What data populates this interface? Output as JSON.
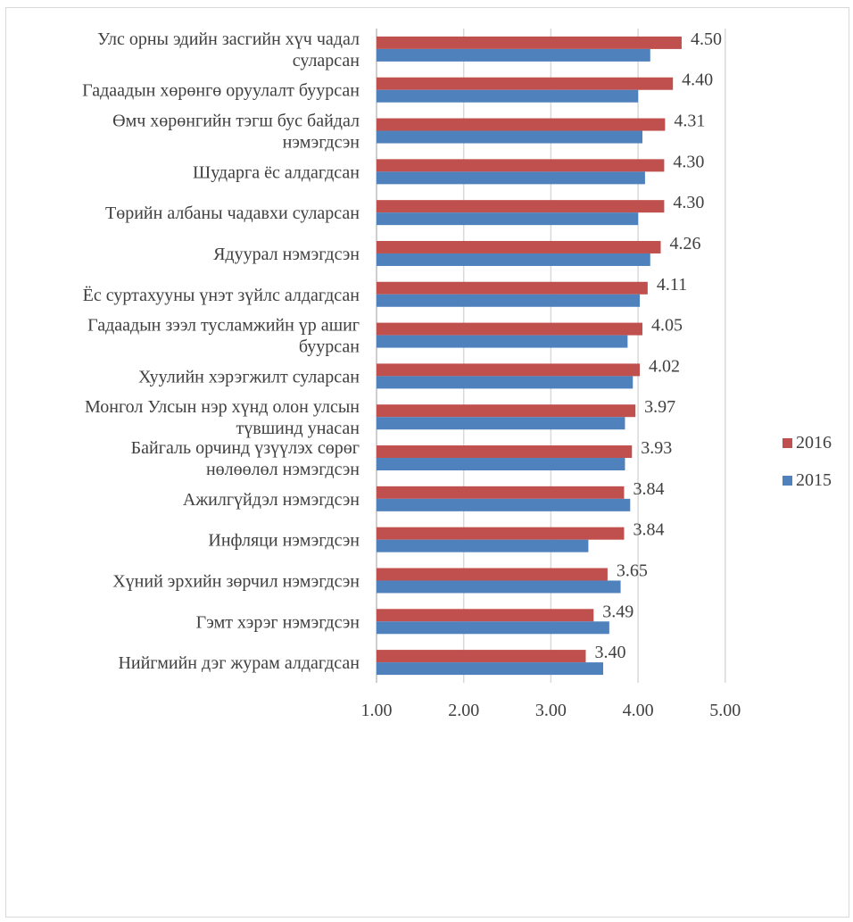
{
  "chart_data": {
    "type": "bar",
    "orientation": "horizontal",
    "categories": [
      [
        "Улс орны эдийн засгийн хүч чадал",
        "суларсан"
      ],
      [
        "Гадаадын хөрөнгө оруулалт буурсан"
      ],
      [
        "Өмч хөрөнгийн тэгш бус байдал",
        "нэмэгдсэн"
      ],
      [
        "Шударга ёс алдагдсан"
      ],
      [
        "Төрийн албаны чадавхи суларсан"
      ],
      [
        "Ядуурал нэмэгдсэн"
      ],
      [
        "Ёс суртахууны үнэт зүйлс алдагдсан"
      ],
      [
        "Гадаадын зээл тусламжийн үр ашиг",
        "буурсан"
      ],
      [
        "Хуулийн хэрэгжилт суларсан"
      ],
      [
        "Монгол Улсын нэр хүнд олон улсын",
        "түвшинд унасан"
      ],
      [
        "Байгаль орчинд үзүүлэх сөрөг",
        "нөлөөлөл нэмэгдсэн"
      ],
      [
        "Ажилгүйдэл нэмэгдсэн"
      ],
      [
        "Инфляци нэмэгдсэн"
      ],
      [
        "Хүний эрхийн зөрчил нэмэгдсэн"
      ],
      [
        "Гэмт хэрэг нэмэгдсэн"
      ],
      [
        "Нийгмийн дэг журам алдагдсан"
      ]
    ],
    "series": [
      {
        "name": "2016",
        "color": "#c0504d",
        "values": [
          4.5,
          4.4,
          4.31,
          4.3,
          4.3,
          4.26,
          4.11,
          4.05,
          4.02,
          3.97,
          3.93,
          3.84,
          3.84,
          3.65,
          3.49,
          3.4
        ],
        "labels": [
          "4.50",
          "4.40",
          "4.31",
          "4.30",
          "4.30",
          "4.26",
          "4.11",
          "4.05",
          "4.02",
          "3.97",
          "3.93",
          "3.84",
          "3.84",
          "3.65",
          "3.49",
          "3.40"
        ]
      },
      {
        "name": "2015",
        "color": "#4f81bd",
        "values": [
          4.14,
          4.0,
          4.05,
          4.08,
          4.0,
          4.14,
          4.02,
          3.88,
          3.94,
          3.85,
          3.85,
          3.91,
          3.43,
          3.8,
          3.67,
          3.6
        ]
      }
    ],
    "xlim": [
      1.0,
      5.0
    ],
    "xticks": [
      "1.00",
      "2.00",
      "3.00",
      "4.00",
      "5.00"
    ],
    "grid": true,
    "legend_position": "right",
    "legend_order": [
      "2016",
      "2015"
    ],
    "title": "",
    "xlabel": "",
    "ylabel": ""
  }
}
